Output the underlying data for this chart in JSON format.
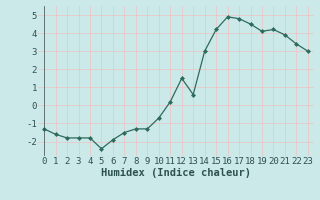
{
  "x": [
    0,
    1,
    2,
    3,
    4,
    5,
    6,
    7,
    8,
    9,
    10,
    11,
    12,
    13,
    14,
    15,
    16,
    17,
    18,
    19,
    20,
    21,
    22,
    23
  ],
  "y": [
    -1.3,
    -1.6,
    -1.8,
    -1.8,
    -1.8,
    -2.4,
    -1.9,
    -1.5,
    -1.3,
    -1.3,
    -0.7,
    0.2,
    1.5,
    0.6,
    3.0,
    4.2,
    4.9,
    4.8,
    4.5,
    4.1,
    4.2,
    3.9,
    3.4,
    3.0
  ],
  "xlabel": "Humidex (Indice chaleur)",
  "ylim": [
    -2.8,
    5.5
  ],
  "xlim": [
    -0.5,
    23.5
  ],
  "yticks": [
    -2,
    -1,
    0,
    1,
    2,
    3,
    4,
    5
  ],
  "xticks": [
    0,
    1,
    2,
    3,
    4,
    5,
    6,
    7,
    8,
    9,
    10,
    11,
    12,
    13,
    14,
    15,
    16,
    17,
    18,
    19,
    20,
    21,
    22,
    23
  ],
  "line_color": "#2d6b5e",
  "marker_color": "#2d6b5e",
  "bg_color": "#cce9e9",
  "grid_color": "#e8c8c8",
  "xlabel_fontsize": 7.5,
  "tick_fontsize": 6.5
}
